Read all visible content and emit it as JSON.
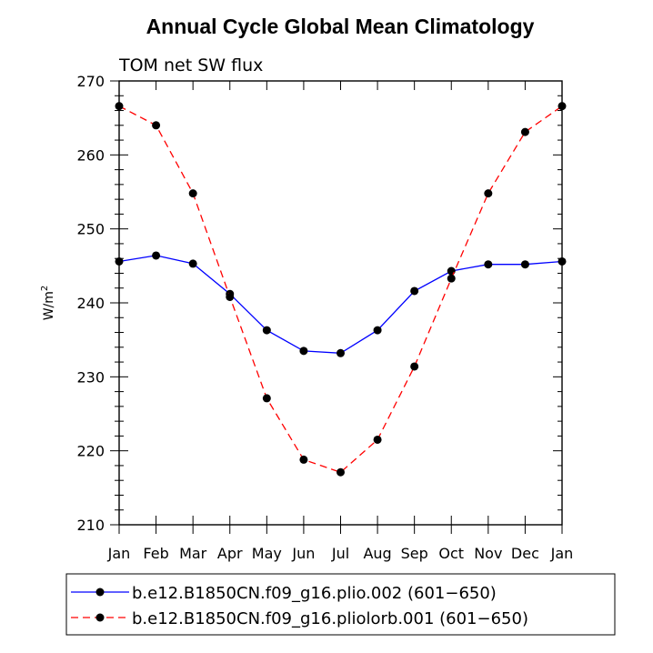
{
  "chart_data": {
    "type": "line",
    "title": "Annual Cycle Global Mean Climatology",
    "subtitle": "TOM net SW flux",
    "ylabel": "W/m",
    "ylabel_superscript": "2",
    "xlabel": "",
    "categories": [
      "Jan",
      "Feb",
      "Mar",
      "Apr",
      "May",
      "Jun",
      "Jul",
      "Aug",
      "Sep",
      "Oct",
      "Nov",
      "Dec",
      "Jan"
    ],
    "ylim": [
      210,
      270
    ],
    "yticks": [
      "210",
      "220",
      "230",
      "240",
      "250",
      "260",
      "270"
    ],
    "legend_position": "bottom",
    "series": [
      {
        "name": "b.e12.B1850CN.f09_g16.plio.002 (601−650)",
        "color": "#0000ff",
        "style": "solid",
        "marker_color": "#000000",
        "values": [
          245.6,
          246.4,
          245.3,
          241.2,
          236.3,
          233.5,
          233.2,
          236.3,
          241.6,
          244.3,
          245.2,
          245.2,
          245.6
        ]
      },
      {
        "name": "b.e12.B1850CN.f09_g16.pliolorb.001 (601−650)",
        "color": "#ff0000",
        "style": "dashed",
        "marker_color": "#000000",
        "values": [
          266.6,
          264.0,
          254.8,
          240.8,
          227.1,
          218.8,
          217.1,
          221.5,
          231.4,
          243.3,
          254.8,
          263.1,
          266.6
        ]
      }
    ]
  }
}
